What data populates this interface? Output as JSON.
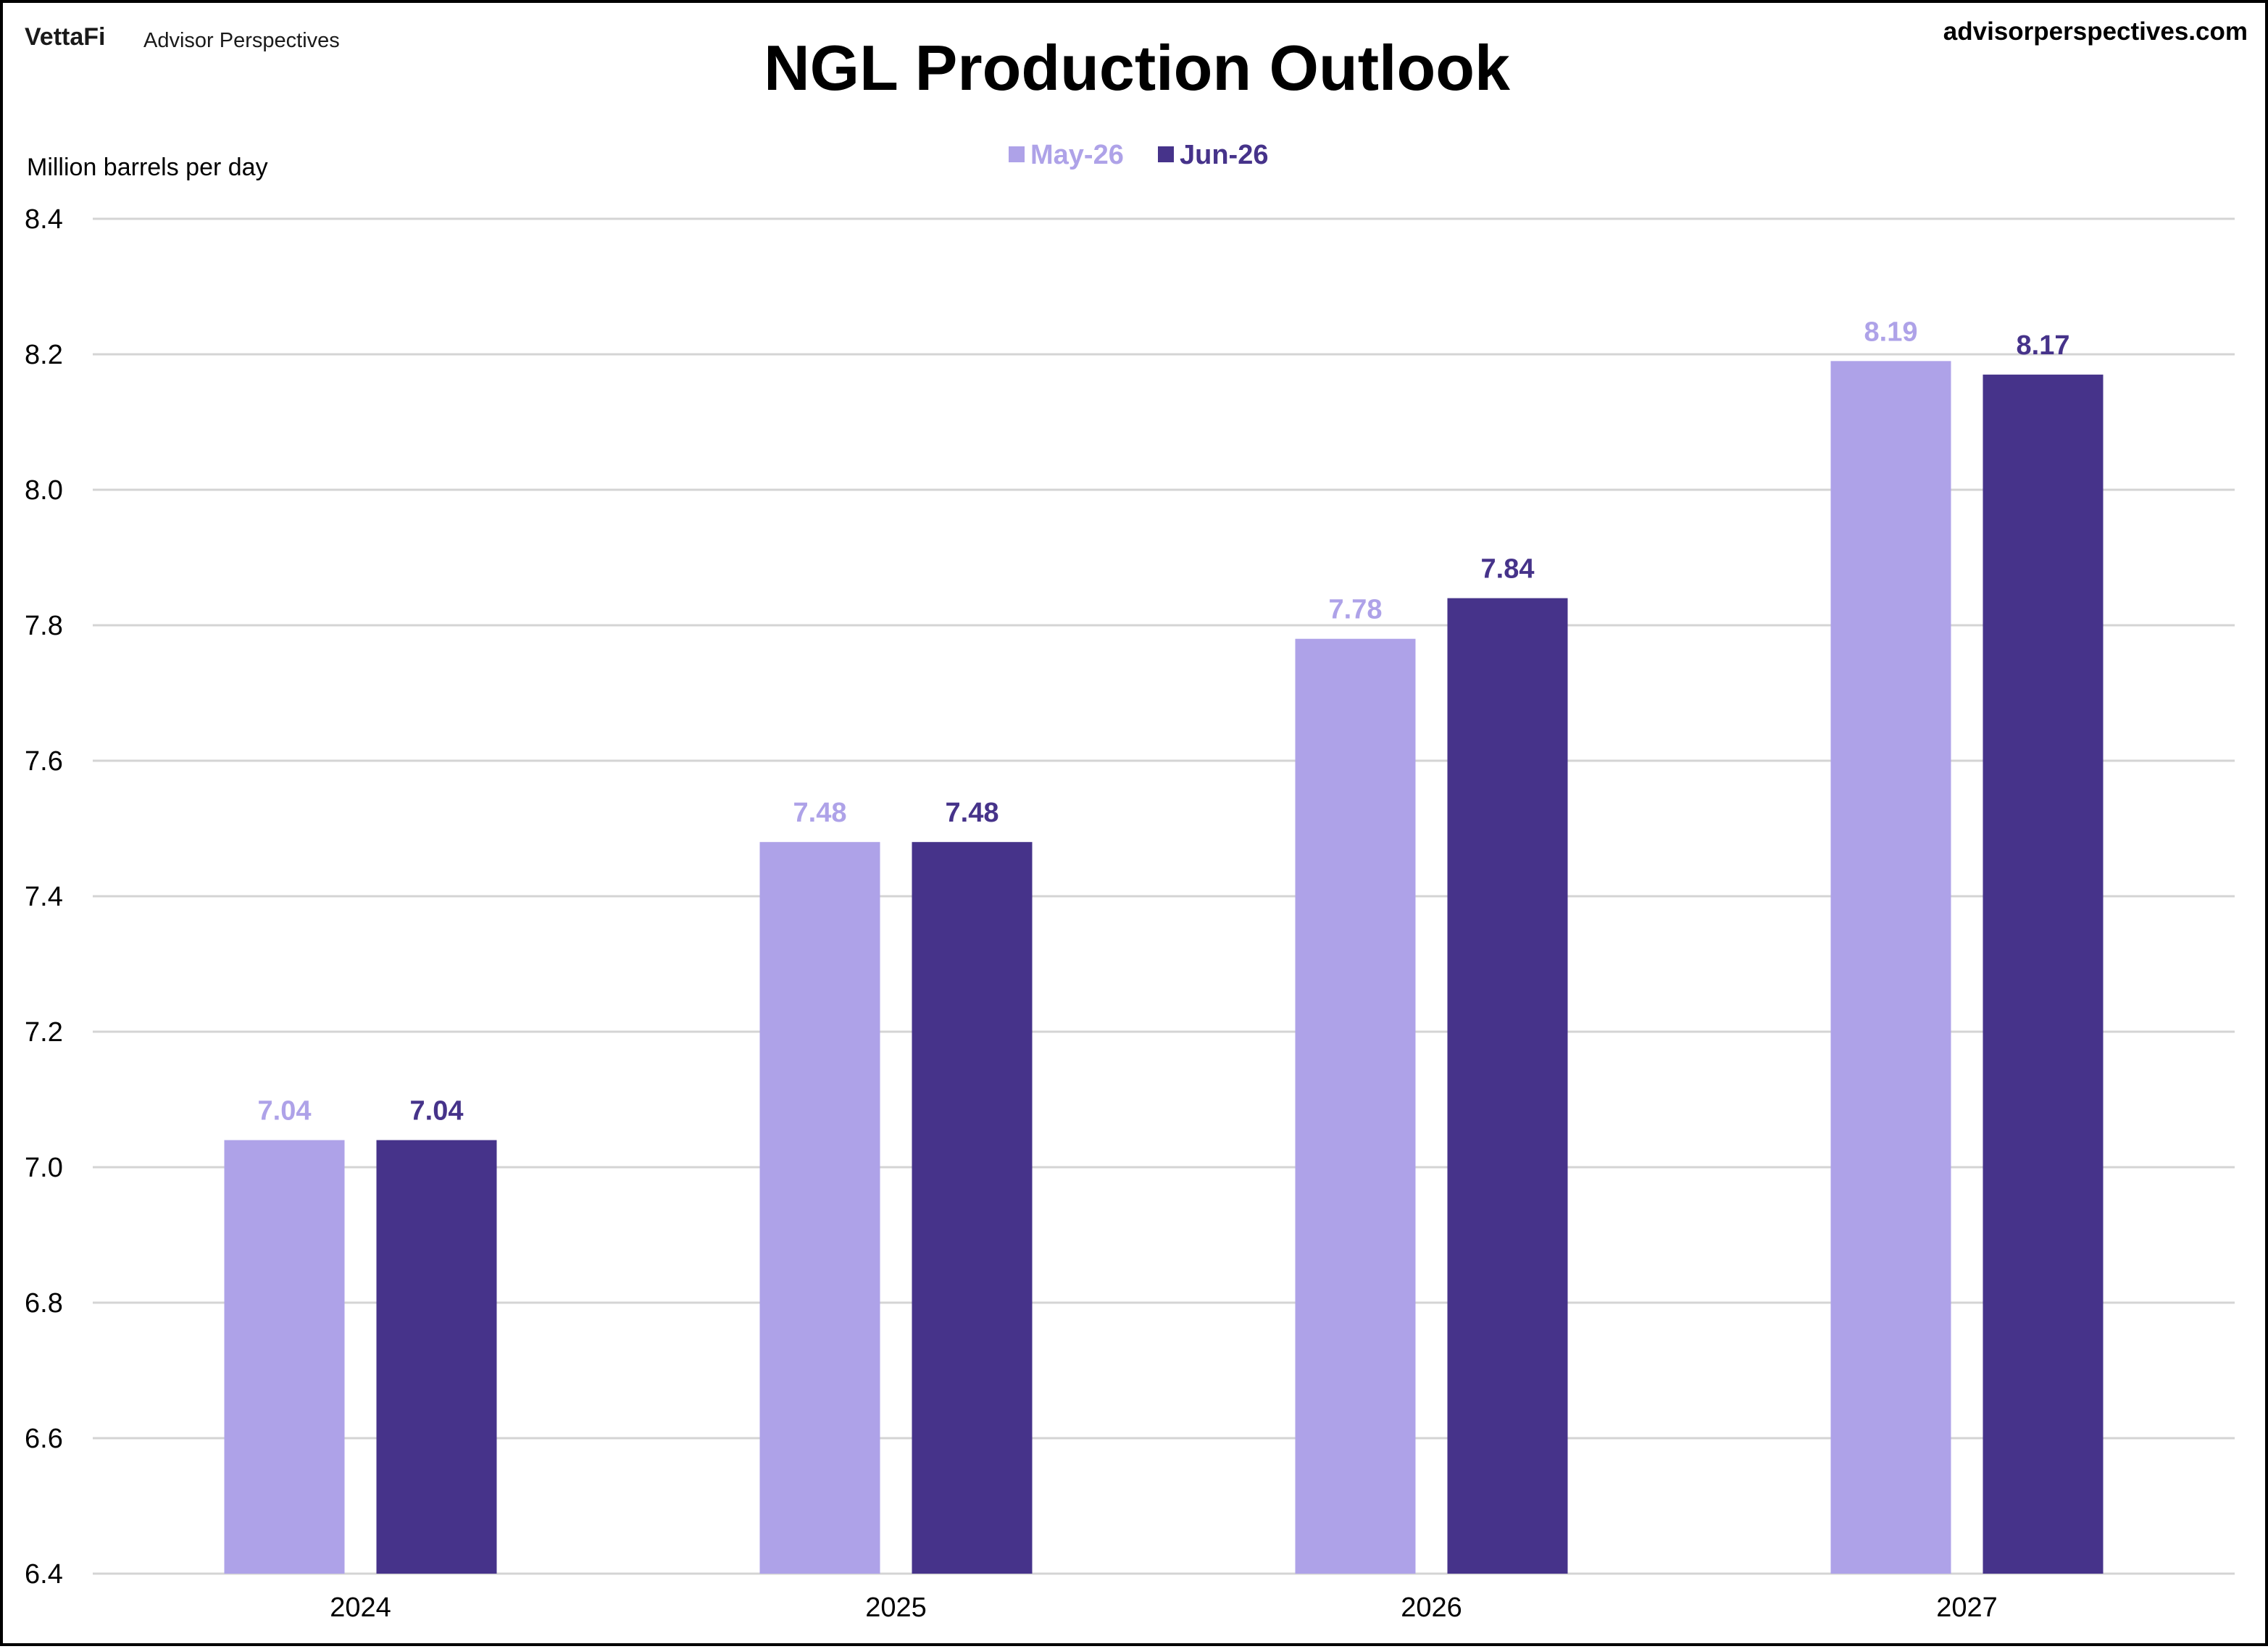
{
  "header": {
    "brand_logo": "VettaFi",
    "brand_name": "Advisor Perspectives",
    "site_url": "advisorperspectives.com"
  },
  "chart_data": {
    "type": "bar",
    "title": "NGL Production Outlook",
    "ylabel": "Million barrels per day",
    "xlabel": "",
    "categories": [
      "2024",
      "2025",
      "2026",
      "2027"
    ],
    "series": [
      {
        "name": "May-26",
        "values": [
          7.04,
          7.48,
          7.78,
          8.19
        ],
        "color": "#aea2e8"
      },
      {
        "name": "Jun-26",
        "values": [
          7.04,
          7.48,
          7.84,
          8.17
        ],
        "color": "#46338a"
      }
    ],
    "ylim": [
      6.4,
      8.4
    ],
    "yticks": [
      6.4,
      6.6,
      6.8,
      7.0,
      7.2,
      7.4,
      7.6,
      7.8,
      8.0,
      8.2,
      8.4
    ],
    "ytick_decimals": 1,
    "value_decimals": 2,
    "grid": true,
    "legend_position": "top-center",
    "data_labels": true
  }
}
